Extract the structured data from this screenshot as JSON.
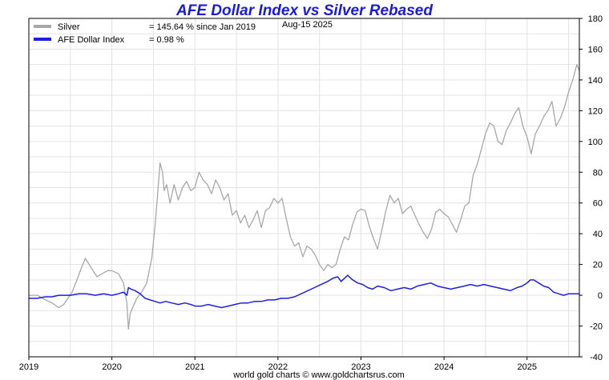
{
  "chart_data": {
    "type": "line",
    "title": "AFE Dollar Index vs Silver Rebased",
    "date_label": "Aug-15  2025",
    "footer": "world gold charts © www.goldchartsrus.com",
    "xlim": [
      2019.0,
      2025.63
    ],
    "ylim": [
      -40,
      180
    ],
    "y_ticks": [
      -40,
      -20,
      0,
      20,
      40,
      60,
      80,
      100,
      120,
      140,
      160,
      180
    ],
    "x_ticks": [
      2019,
      2020,
      2021,
      2022,
      2023,
      2024,
      2025
    ],
    "x_tick_labels": [
      "2019",
      "2020",
      "2021",
      "2022",
      "2023",
      "2024",
      "2025"
    ],
    "grid": true,
    "legend_position": "top-left",
    "series": [
      {
        "name": "Silver",
        "summary": "= 145.64 % since Jan 2019",
        "color": "#a8a8a8",
        "x": [
          2019.0,
          2019.1,
          2019.2,
          2019.28,
          2019.36,
          2019.42,
          2019.47,
          2019.52,
          2019.58,
          2019.62,
          2019.68,
          2019.75,
          2019.82,
          2019.88,
          2019.95,
          2020.0,
          2020.08,
          2020.14,
          2020.18,
          2020.2,
          2020.22,
          2020.25,
          2020.3,
          2020.36,
          2020.42,
          2020.48,
          2020.52,
          2020.55,
          2020.58,
          2020.61,
          2020.63,
          2020.66,
          2020.7,
          2020.75,
          2020.8,
          2020.85,
          2020.9,
          2020.95,
          2021.0,
          2021.05,
          2021.1,
          2021.15,
          2021.2,
          2021.25,
          2021.3,
          2021.35,
          2021.4,
          2021.45,
          2021.5,
          2021.55,
          2021.6,
          2021.65,
          2021.7,
          2021.75,
          2021.8,
          2021.85,
          2021.9,
          2021.95,
          2022.0,
          2022.05,
          2022.1,
          2022.15,
          2022.2,
          2022.25,
          2022.3,
          2022.35,
          2022.4,
          2022.45,
          2022.5,
          2022.55,
          2022.6,
          2022.65,
          2022.7,
          2022.75,
          2022.8,
          2022.85,
          2022.9,
          2022.95,
          2023.0,
          2023.05,
          2023.1,
          2023.15,
          2023.2,
          2023.25,
          2023.3,
          2023.35,
          2023.4,
          2023.45,
          2023.5,
          2023.55,
          2023.6,
          2023.65,
          2023.7,
          2023.75,
          2023.8,
          2023.85,
          2023.9,
          2023.95,
          2024.0,
          2024.05,
          2024.1,
          2024.15,
          2024.2,
          2024.25,
          2024.3,
          2024.35,
          2024.4,
          2024.45,
          2024.5,
          2024.55,
          2024.6,
          2024.65,
          2024.7,
          2024.75,
          2024.8,
          2024.85,
          2024.9,
          2024.95,
          2025.0,
          2025.05,
          2025.1,
          2025.15,
          2025.2,
          2025.25,
          2025.3,
          2025.35,
          2025.4,
          2025.45,
          2025.5,
          2025.55,
          2025.6,
          2025.63
        ],
        "y": [
          0,
          0,
          -3,
          -5,
          -8,
          -6,
          -2,
          2,
          10,
          16,
          24,
          18,
          12,
          14,
          16,
          16,
          14,
          8,
          -5,
          -22,
          -12,
          -8,
          -2,
          2,
          8,
          24,
          45,
          65,
          86,
          80,
          68,
          72,
          60,
          72,
          62,
          70,
          74,
          68,
          70,
          80,
          75,
          72,
          66,
          75,
          70,
          62,
          66,
          52,
          55,
          47,
          52,
          44,
          49,
          55,
          44,
          55,
          57,
          63,
          60,
          63,
          50,
          38,
          32,
          34,
          25,
          32,
          30,
          26,
          20,
          16,
          20,
          18,
          20,
          30,
          38,
          36,
          46,
          54,
          56,
          55,
          45,
          37,
          30,
          42,
          55,
          65,
          60,
          63,
          53,
          56,
          58,
          52,
          46,
          41,
          37,
          43,
          54,
          56,
          53,
          51,
          46,
          41,
          49,
          58,
          60,
          78,
          85,
          95,
          105,
          112,
          110,
          100,
          98,
          107,
          112,
          118,
          122,
          110,
          103,
          92,
          105,
          110,
          116,
          120,
          126,
          110,
          115,
          122,
          132,
          140,
          150,
          146
        ],
        "last_label": "= 145.64 % since Jan 2019"
      },
      {
        "name": "AFE Dollar Index",
        "summary": "= 0.98 %",
        "color": "#1f1fe0",
        "x": [
          2019.0,
          2019.1,
          2019.2,
          2019.28,
          2019.36,
          2019.42,
          2019.5,
          2019.6,
          2019.7,
          2019.8,
          2019.9,
          2020.0,
          2020.08,
          2020.14,
          2020.18,
          2020.2,
          2020.23,
          2020.28,
          2020.34,
          2020.4,
          2020.46,
          2020.52,
          2020.58,
          2020.65,
          2020.72,
          2020.8,
          2020.88,
          2020.95,
          2021.0,
          2021.08,
          2021.16,
          2021.24,
          2021.32,
          2021.4,
          2021.48,
          2021.56,
          2021.64,
          2021.72,
          2021.8,
          2021.88,
          2021.96,
          2022.04,
          2022.12,
          2022.2,
          2022.28,
          2022.36,
          2022.44,
          2022.52,
          2022.6,
          2022.66,
          2022.72,
          2022.76,
          2022.8,
          2022.84,
          2022.9,
          2022.96,
          2023.02,
          2023.08,
          2023.14,
          2023.2,
          2023.28,
          2023.36,
          2023.44,
          2023.52,
          2023.6,
          2023.68,
          2023.76,
          2023.84,
          2023.92,
          2024.0,
          2024.08,
          2024.16,
          2024.24,
          2024.32,
          2024.4,
          2024.48,
          2024.56,
          2024.64,
          2024.72,
          2024.8,
          2024.88,
          2024.94,
          2025.0,
          2025.04,
          2025.08,
          2025.14,
          2025.2,
          2025.26,
          2025.32,
          2025.38,
          2025.44,
          2025.5,
          2025.56,
          2025.63
        ],
        "y": [
          -2,
          -2,
          -1,
          -1,
          0,
          0,
          0,
          1,
          1,
          0,
          1,
          0,
          1,
          2,
          0,
          5,
          4,
          3,
          1,
          -2,
          -3,
          -4,
          -5,
          -4,
          -5,
          -6,
          -5,
          -6,
          -7,
          -7,
          -6,
          -7,
          -8,
          -7,
          -6,
          -5,
          -5,
          -4,
          -4,
          -3,
          -3,
          -2,
          -2,
          -1,
          1,
          3,
          5,
          7,
          9,
          11,
          12,
          9,
          11,
          13,
          10,
          8,
          7,
          5,
          4,
          6,
          5,
          3,
          4,
          5,
          4,
          6,
          7,
          8,
          6,
          5,
          4,
          5,
          6,
          7,
          6,
          7,
          6,
          5,
          4,
          3,
          5,
          6,
          8,
          10,
          10,
          8,
          6,
          5,
          2,
          1,
          0,
          1,
          1,
          1
        ]
      }
    ]
  }
}
